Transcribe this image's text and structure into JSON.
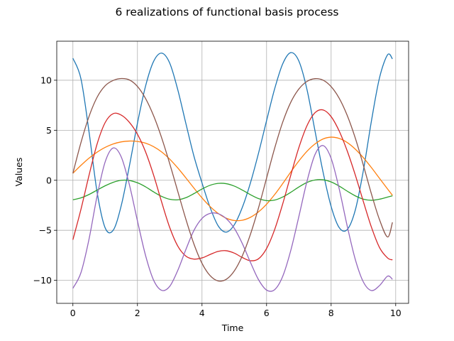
{
  "chart_data": {
    "type": "line",
    "title": "6 realizations of functional basis process",
    "xlabel": "Time",
    "ylabel": "Values",
    "xlim": [
      -0.5,
      10.4
    ],
    "ylim": [
      -12.3,
      13.9
    ],
    "xticks": [
      0,
      2,
      4,
      6,
      8,
      10
    ],
    "yticks": [
      -10,
      -5,
      0,
      5,
      10
    ],
    "xtick_labels": [
      "0",
      "2",
      "4",
      "6",
      "8",
      "10"
    ],
    "ytick_labels": [
      "−10",
      "−5",
      "0",
      "5",
      "10"
    ],
    "grid": true,
    "x": [
      0,
      0.25,
      0.5,
      0.75,
      1,
      1.25,
      1.5,
      1.75,
      2,
      2.25,
      2.5,
      2.75,
      3,
      3.25,
      3.5,
      3.75,
      4,
      4.25,
      4.5,
      4.75,
      5,
      5.25,
      5.5,
      5.75,
      6,
      6.25,
      6.5,
      6.75,
      7,
      7.25,
      7.5,
      7.75,
      8,
      8.25,
      8.5,
      8.75,
      9,
      9.25,
      9.5,
      9.75,
      9.9
    ],
    "series": [
      {
        "color": "#1f77b4",
        "values": [
          12.2,
          10.14,
          4.84,
          -1.19,
          -4.76,
          -4.99,
          -2.5,
          1.43,
          5.7,
          9.4,
          11.88,
          12.71,
          11.71,
          9.04,
          5.68,
          2.41,
          -0.26,
          -2.71,
          -4.55,
          -5.18,
          -4.45,
          -2.7,
          -0.26,
          2.7,
          5.96,
          9.14,
          11.64,
          12.76,
          11.92,
          9.1,
          4.94,
          0.82,
          -2.62,
          -4.73,
          -4.92,
          -2.96,
          1.0,
          5.96,
          10.26,
          12.55,
          12.13
        ]
      },
      {
        "color": "#ff7f0e",
        "values": [
          0.7,
          1.49,
          2.21,
          2.81,
          3.29,
          3.63,
          3.84,
          3.92,
          3.88,
          3.71,
          3.36,
          2.83,
          2.11,
          1.23,
          0.24,
          -0.78,
          -1.76,
          -2.62,
          -3.31,
          -3.79,
          -4.02,
          -3.99,
          -3.7,
          -3.16,
          -2.39,
          -1.43,
          -0.33,
          0.83,
          1.93,
          2.89,
          3.63,
          4.13,
          4.31,
          4.18,
          3.77,
          3.11,
          2.25,
          1.26,
          0.19,
          -0.88,
          -1.5
        ]
      },
      {
        "color": "#2ca02c",
        "values": [
          -1.95,
          -1.76,
          -1.42,
          -0.98,
          -0.55,
          -0.2,
          0.0,
          -0.02,
          -0.25,
          -0.65,
          -1.16,
          -1.61,
          -1.9,
          -1.95,
          -1.74,
          -1.33,
          -0.87,
          -0.5,
          -0.31,
          -0.34,
          -0.58,
          -0.98,
          -1.44,
          -1.83,
          -2.03,
          -1.98,
          -1.67,
          -1.2,
          -0.67,
          -0.22,
          0.03,
          0.05,
          -0.17,
          -0.58,
          -1.09,
          -1.56,
          -1.89,
          -2.0,
          -1.89,
          -1.68,
          -1.55
        ]
      },
      {
        "color": "#d62728",
        "values": [
          -5.94,
          -2.9,
          0.5,
          3.63,
          5.77,
          6.66,
          6.51,
          5.79,
          4.6,
          2.85,
          0.52,
          -2.18,
          -4.72,
          -6.58,
          -7.58,
          -7.88,
          -7.76,
          -7.42,
          -7.11,
          -7.04,
          -7.28,
          -7.72,
          -8.04,
          -7.85,
          -6.82,
          -4.93,
          -2.36,
          0.51,
          3.26,
          5.44,
          6.75,
          7.03,
          6.36,
          4.92,
          2.92,
          0.51,
          -2.14,
          -4.7,
          -6.73,
          -7.77,
          -7.95
        ]
      },
      {
        "color": "#9467bd",
        "values": [
          -10.8,
          -9.23,
          -5.88,
          -1.57,
          1.84,
          3.23,
          2.32,
          -0.44,
          -4.06,
          -7.5,
          -9.98,
          -11.0,
          -10.6,
          -9.0,
          -6.92,
          -5.01,
          -3.81,
          -3.31,
          -3.34,
          -3.83,
          -4.8,
          -6.33,
          -8.2,
          -9.93,
          -10.97,
          -10.93,
          -9.6,
          -7.01,
          -3.63,
          -0.13,
          2.57,
          3.47,
          2.19,
          -0.86,
          -4.6,
          -7.93,
          -10.17,
          -11.02,
          -10.52,
          -9.58,
          -9.9
        ]
      },
      {
        "color": "#8c564b",
        "values": [
          0.7,
          3.77,
          6.38,
          8.3,
          9.45,
          9.98,
          10.17,
          10.03,
          9.38,
          8.18,
          6.45,
          4.24,
          1.66,
          -1.12,
          -3.89,
          -6.37,
          -8.3,
          -9.53,
          -10.06,
          -9.9,
          -9.06,
          -7.54,
          -5.4,
          -2.76,
          0.22,
          3.2,
          5.81,
          7.8,
          9.12,
          9.88,
          10.16,
          10.01,
          9.36,
          8.2,
          6.47,
          4.2,
          1.49,
          -1.38,
          -3.95,
          -5.67,
          -4.2
        ]
      }
    ]
  }
}
